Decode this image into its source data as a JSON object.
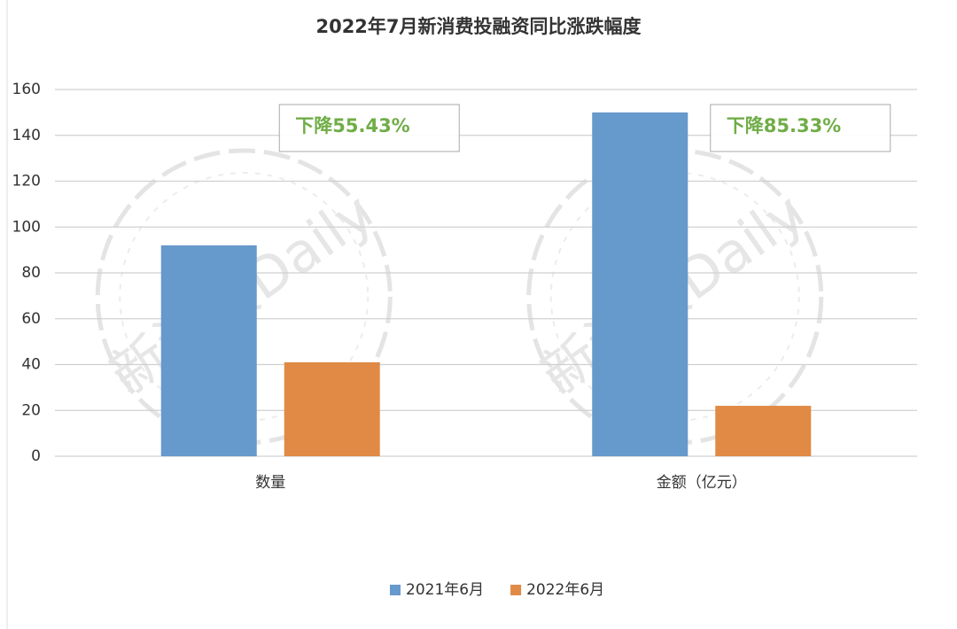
{
  "chart_data": {
    "type": "bar",
    "title": "2022年7月新消费投融资同比涨跌幅度",
    "categories": [
      "数量",
      "金额（亿元）"
    ],
    "series": [
      {
        "name": "2021年6月",
        "color": "#6699cc",
        "values": [
          92,
          150
        ]
      },
      {
        "name": "2022年6月",
        "color": "#e08a45",
        "values": [
          41,
          22
        ]
      }
    ],
    "annotations": [
      "下降55.43%",
      "下降85.33%"
    ],
    "annotation_color": "#70ad47",
    "watermark": "新消费Daily",
    "ylim": [
      0,
      160
    ],
    "yticks": [
      0,
      20,
      40,
      60,
      80,
      100,
      120,
      140,
      160
    ],
    "grid": true,
    "legend": "bottom"
  }
}
